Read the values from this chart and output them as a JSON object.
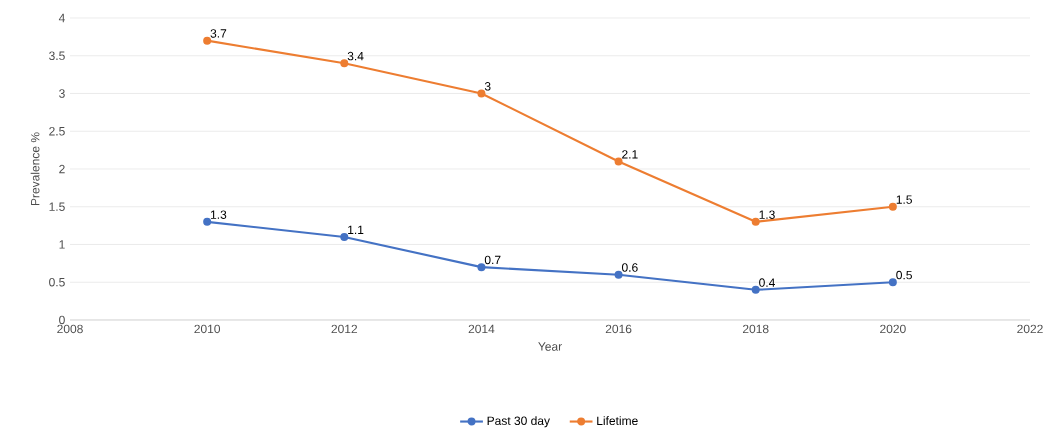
{
  "chart_data": {
    "type": "line",
    "xlabel": "Year",
    "ylabel": "Prevalence %",
    "x": [
      2010,
      2012,
      2014,
      2016,
      2018,
      2020
    ],
    "series": [
      {
        "name": "Past 30 day",
        "color": "#4472c4",
        "values": [
          1.3,
          1.1,
          0.7,
          0.6,
          0.4,
          0.5
        ]
      },
      {
        "name": "Lifetime",
        "color": "#ed7d31",
        "values": [
          3.7,
          3.4,
          3,
          2.1,
          1.3,
          1.5
        ]
      }
    ],
    "xlim": [
      2008,
      2022
    ],
    "xticks": [
      2008,
      2010,
      2012,
      2014,
      2016,
      2018,
      2020,
      2022
    ],
    "ylim": [
      0,
      4
    ],
    "yticks": [
      0,
      0.5,
      1,
      1.5,
      2,
      2.5,
      3,
      3.5,
      4
    ],
    "grid": "y",
    "legend": "bottom",
    "marker": "circle",
    "data_labels": true
  }
}
